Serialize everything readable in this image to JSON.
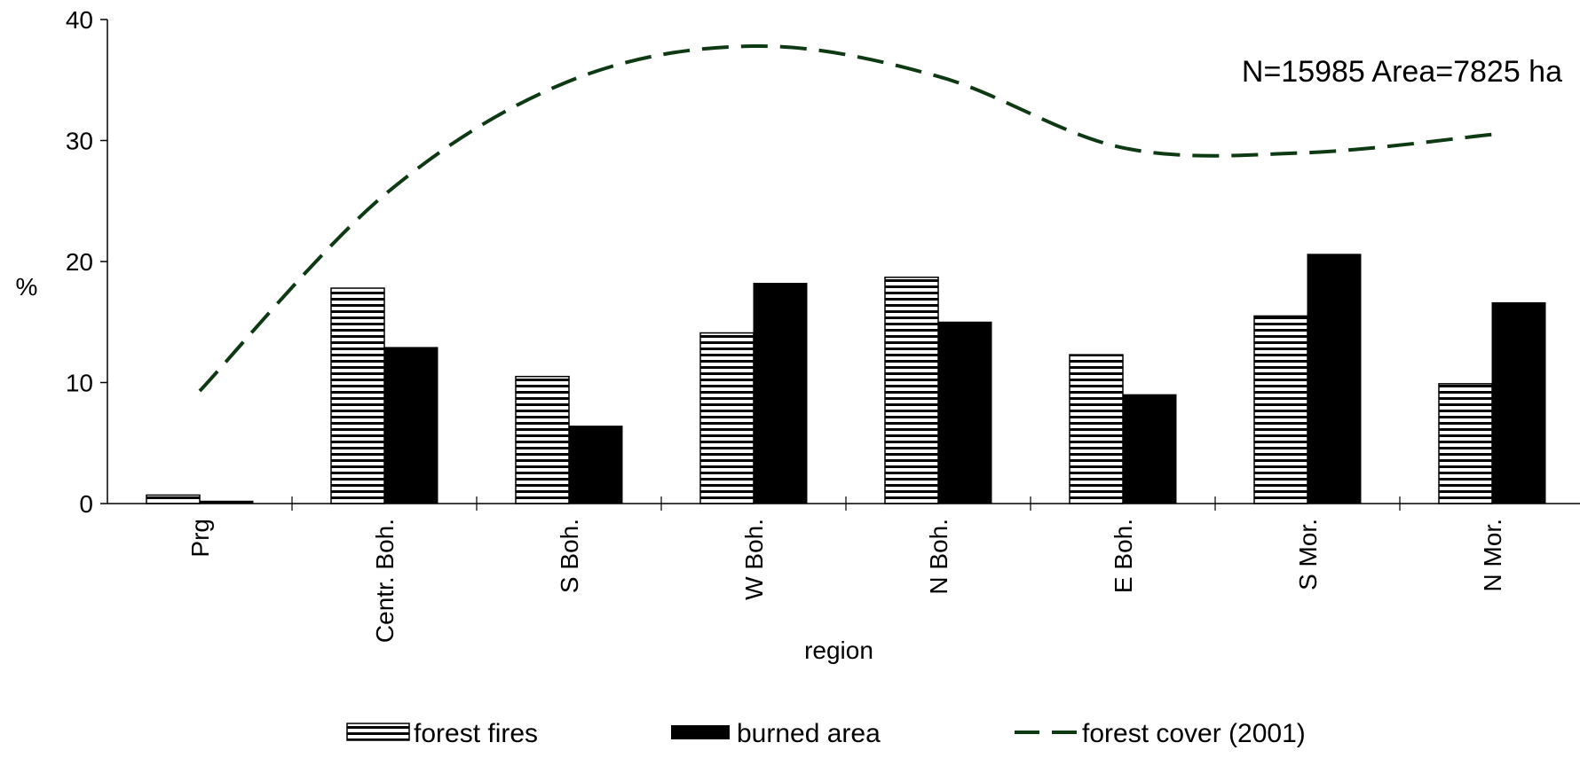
{
  "chart_data": {
    "type": "bar",
    "title": "",
    "xlabel": "region",
    "ylabel": "%",
    "ylim": [
      0,
      40
    ],
    "yticks": [
      0,
      10,
      20,
      30,
      40
    ],
    "ytick_labels": [
      "0",
      "10",
      "20",
      "30",
      "40"
    ],
    "grid": false,
    "legend_position": "bottom",
    "categories": [
      "Prg",
      "Centr. Boh.",
      "S Boh.",
      "W Boh.",
      "N Boh.",
      "E Boh.",
      "S Mor.",
      "N Mor."
    ],
    "series": [
      {
        "name": "forest fires",
        "kind": "bar",
        "style": "horizontal-hatch",
        "values": [
          0.7,
          17.8,
          10.5,
          14.1,
          18.7,
          12.3,
          15.5,
          9.9
        ]
      },
      {
        "name": "burned area",
        "kind": "bar",
        "style": "solid",
        "color": "#000000",
        "values": [
          0.2,
          12.9,
          6.4,
          18.2,
          15.0,
          9.0,
          20.6,
          16.6
        ]
      },
      {
        "name": "forest cover (2001)",
        "kind": "line",
        "style": "dashed",
        "color": "#0d3a12",
        "values": [
          9.3,
          25.5,
          34.9,
          37.8,
          35.3,
          29.4,
          29.0,
          30.5
        ]
      }
    ],
    "annotation": "N=15985 Area=7825 ha"
  }
}
